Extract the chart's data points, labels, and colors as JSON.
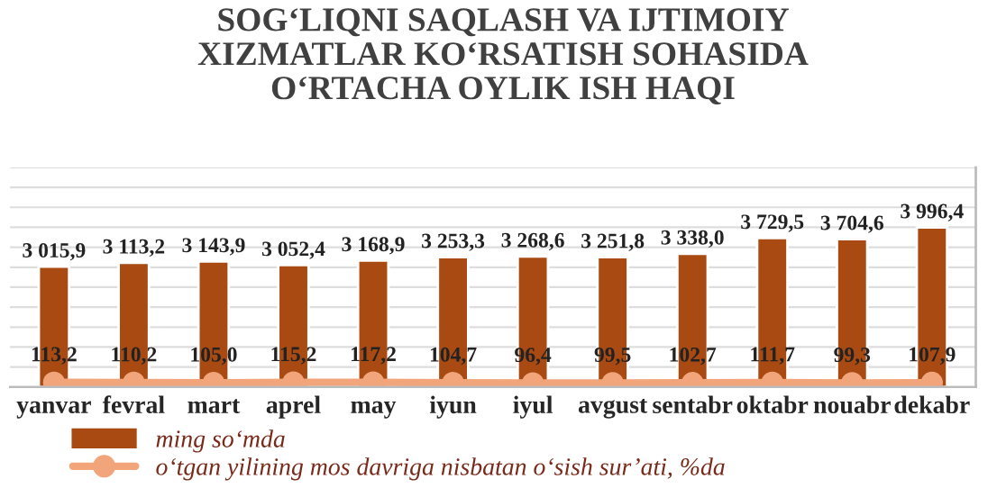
{
  "chart_data": {
    "type": "bar",
    "title": "SOG‘LIQNI SAQLASH VA IJTIMOIY\nXIZMATLAR KO‘RSATISH SOHASIDA\nO‘RTACHA OYLIK ISH HAQI",
    "categories": [
      "yanvar",
      "fevral",
      "mart",
      "aprel",
      "may",
      "iyun",
      "iyul",
      "avgust",
      "sentabr",
      "oktabr",
      "nouabr",
      "dekabr"
    ],
    "series": [
      {
        "name": "ming so‘mda",
        "color": "#a84a12",
        "values": [
          3015.9,
          3113.2,
          3143.9,
          3052.4,
          3168.9,
          3253.3,
          3268.6,
          3251.8,
          3338.0,
          3729.5,
          3704.6,
          3996.4
        ],
        "value_labels": [
          "3 015,9",
          "3 113,2",
          "3 143,9",
          "3 052,4",
          "3 168,9",
          "3 253,3",
          "3 268,6",
          "3 251,8",
          "3 338,0",
          "3 729,5",
          "3 704,6",
          "3 996,4"
        ]
      },
      {
        "name": "o‘tgan yilining mos davriga nisbatan o‘sish sur’ati, %da",
        "type": "line",
        "color": "#f2a57a",
        "marker": "circle",
        "values": [
          113.2,
          110.2,
          105.0,
          115.2,
          117.2,
          104.7,
          96.4,
          99.5,
          102.7,
          111.7,
          99.3,
          107.9
        ],
        "value_labels": [
          "113,2",
          "110,2",
          "105,0",
          "115,2",
          "117,2",
          "104,7",
          "96,4",
          "99,5",
          "102,7",
          "111,7",
          "99,3",
          "107,9"
        ]
      }
    ],
    "ylim": [
      0,
      5500
    ],
    "yticks": [
      {
        "value": 500,
        "label": null
      },
      {
        "value": 1000,
        "label": null
      },
      {
        "value": 1500,
        "label": null
      },
      {
        "value": 2000,
        "label": null
      },
      {
        "value": 2500,
        "label": null
      },
      {
        "value": 3000,
        "label": null
      },
      {
        "value": 3500,
        "label": null
      },
      {
        "value": 4000,
        "label": null
      },
      {
        "value": 4500,
        "label": null
      },
      {
        "value": 5000,
        "label": null
      },
      {
        "value": 5500,
        "label": null
      }
    ],
    "tick_labels": "x",
    "grid": "y",
    "legend": "bottom"
  }
}
